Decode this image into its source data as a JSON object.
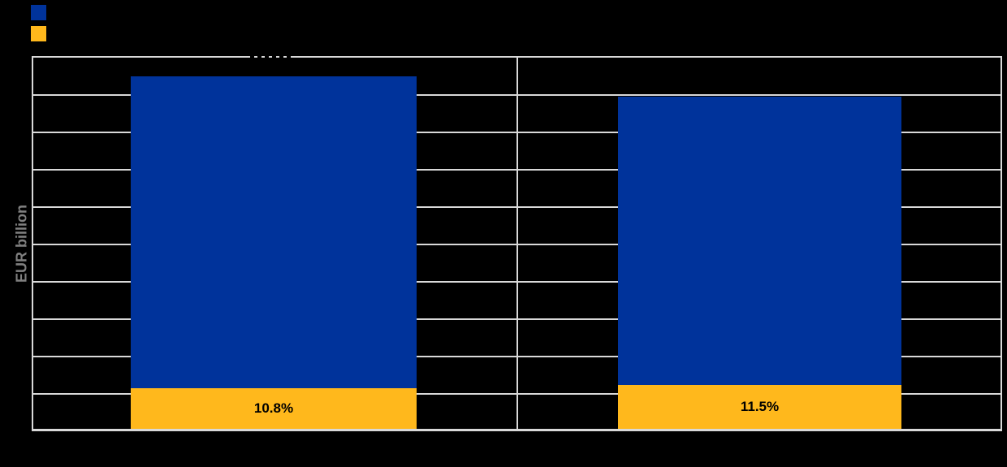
{
  "page": {
    "background": "#000000"
  },
  "legend": {
    "items": [
      {
        "label": "",
        "color": "#00339B"
      },
      {
        "label": "",
        "color": "#FFB81C"
      }
    ]
  },
  "y_axis": {
    "label": "EUR billion",
    "tick_labels_visible": false
  },
  "chart_data": {
    "type": "bar",
    "stacked": true,
    "ylabel": "EUR billion",
    "categories": [
      "",
      ""
    ],
    "x_tick_labels_visible": false,
    "y_tick_labels_visible": false,
    "grid": {
      "horizontal_divisions": 10,
      "color": "#D9D9D9",
      "panel_divider": true
    },
    "series": [
      {
        "name": "",
        "color": "#00339B",
        "position": "upper",
        "fraction_of_axis_range": [
          0.839,
          0.776
        ]
      },
      {
        "name": "",
        "color": "#FFB81C",
        "position": "lower",
        "fraction_of_axis_range": [
          0.109,
          0.117
        ],
        "data_labels": [
          "10.8%",
          "11.5%"
        ]
      }
    ],
    "data_label_color": "#000000",
    "plot_background": "#000000"
  }
}
